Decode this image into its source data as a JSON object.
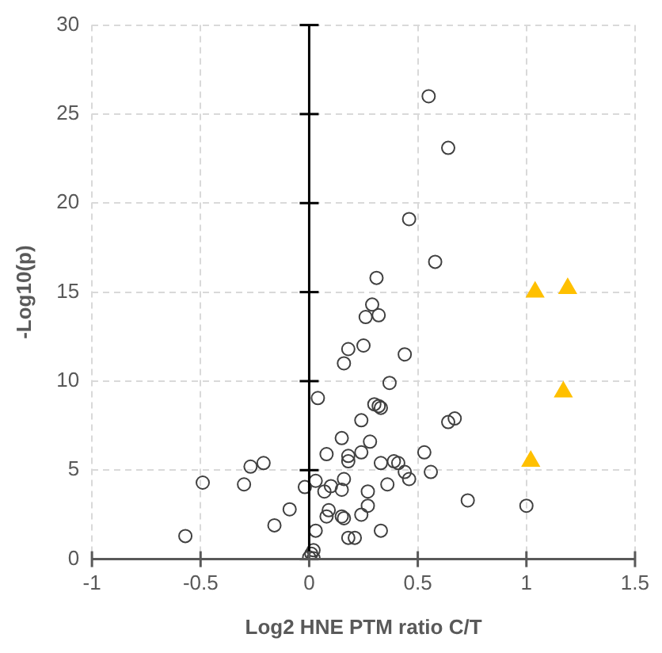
{
  "chart_data": {
    "type": "scatter",
    "xlabel": "Log2 HNE PTM ratio C/T",
    "ylabel": "-Log10(p)",
    "xlim": [
      -1,
      1.5
    ],
    "xticks": [
      -1,
      -0.5,
      0,
      0.5,
      1,
      1.5
    ],
    "ylim": [
      0,
      30
    ],
    "yticks": [
      0,
      5,
      10,
      15,
      20,
      25,
      30
    ],
    "grid": true,
    "legend": false,
    "series": [
      {
        "color": "#404040",
        "marker": "circle",
        "x": [
          0.55,
          0.64,
          0.46,
          0.58,
          0.31,
          0.29,
          0.26,
          0.32,
          0.25,
          0.44,
          0.37,
          0.3,
          0.32,
          0.33,
          0.24,
          0.64,
          0.67,
          0.28,
          0.24,
          0.53,
          0.33,
          0.39,
          0.41,
          0.44,
          0.46,
          0.56,
          0.36,
          0.27,
          0.73,
          1.0,
          0.27,
          0.24,
          0.33,
          0.21,
          0.18,
          0.16,
          0.04,
          0.15,
          0.08,
          0.18,
          0.18,
          -0.27,
          -0.21,
          -0.49,
          -0.3,
          -0.02,
          0.03,
          0.16,
          0.1,
          0.07,
          0.15,
          -0.09,
          0.09,
          0.08,
          0.15,
          0.16,
          -0.16,
          0.03,
          0.18,
          -0.57,
          0.02,
          0.01,
          0.0,
          0.02
        ],
        "values": [
          26,
          23.1,
          19.1,
          16.7,
          15.8,
          14.3,
          13.6,
          13.7,
          12.0,
          11.5,
          9.9,
          8.7,
          8.6,
          8.5,
          7.8,
          7.7,
          7.9,
          6.6,
          6.0,
          6.0,
          5.4,
          5.5,
          5.4,
          4.9,
          4.5,
          4.9,
          4.2,
          3.8,
          3.3,
          3.0,
          3.0,
          2.5,
          1.6,
          1.2,
          11.8,
          11.0,
          9.05,
          6.8,
          5.9,
          5.8,
          5.5,
          5.2,
          5.4,
          4.3,
          4.2,
          4.05,
          4.4,
          4.5,
          4.1,
          3.8,
          3.9,
          2.8,
          2.75,
          2.4,
          2.4,
          2.3,
          1.9,
          1.6,
          1.2,
          1.3,
          0.5,
          0.3,
          0.1,
          0.05
        ]
      },
      {
        "color": "#ffc000",
        "marker": "triangle",
        "x": [
          1.04,
          1.19,
          1.17,
          1.02
        ],
        "values": [
          15.0,
          15.2,
          9.4,
          5.5
        ]
      }
    ]
  }
}
